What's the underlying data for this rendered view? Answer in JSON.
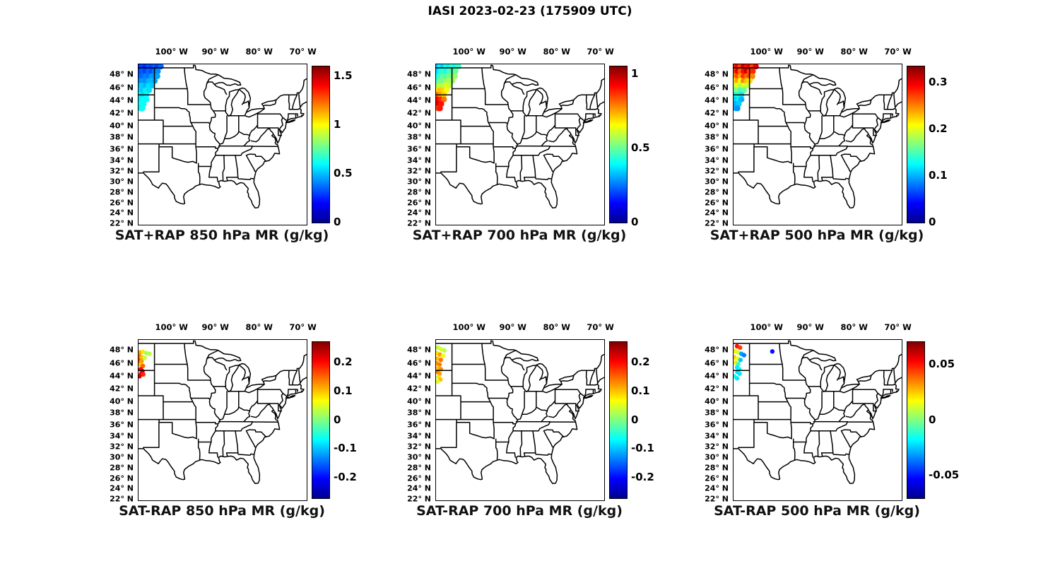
{
  "figure": {
    "title": "IASI 2023-02-23 (175909 UTC)"
  },
  "axes": {
    "lon_ticks": [
      {
        "label": "100° W",
        "lon": -100
      },
      {
        "label": "90° W",
        "lon": -90
      },
      {
        "label": "80° W",
        "lon": -80
      },
      {
        "label": "70° W",
        "lon": -70
      }
    ],
    "lat_ticks": [
      {
        "label": "48° N",
        "lat": 48
      },
      {
        "label": "46° N",
        "lat": 46
      },
      {
        "label": "44° N",
        "lat": 44
      },
      {
        "label": "42° N",
        "lat": 42
      },
      {
        "label": "40° N",
        "lat": 40
      },
      {
        "label": "38° N",
        "lat": 38
      },
      {
        "label": "36° N",
        "lat": 36
      },
      {
        "label": "34° N",
        "lat": 34
      },
      {
        "label": "32° N",
        "lat": 32
      },
      {
        "label": "30° N",
        "lat": 30
      },
      {
        "label": "28° N",
        "lat": 28
      },
      {
        "label": "26° N",
        "lat": 26
      },
      {
        "label": "24° N",
        "lat": 24
      },
      {
        "label": "22° N",
        "lat": 22
      }
    ]
  },
  "chart_data": {
    "type": "scatter",
    "colormap": "jet",
    "projection": {
      "lon_range": [
        -107.7,
        -69.3
      ],
      "lat_range": [
        21.8,
        49.5
      ]
    },
    "panels": [
      {
        "title": "SAT+RAP 850 hPa MR (g/kg)",
        "colorbar": {
          "min": 0,
          "max": 1.6,
          "ticks": [
            {
              "v": 0,
              "label": "0"
            },
            {
              "v": 0.5,
              "label": "0.5"
            },
            {
              "v": 1,
              "label": "1"
            },
            {
              "v": 1.5,
              "label": "1.5"
            }
          ]
        },
        "points": [
          [
            -107.5,
            49.2,
            0.28
          ],
          [
            -106.8,
            49.2,
            0.3
          ],
          [
            -106.1,
            49.2,
            0.26
          ],
          [
            -105.4,
            49.2,
            0.32
          ],
          [
            -104.7,
            49.2,
            0.3
          ],
          [
            -104.0,
            49.2,
            0.34
          ],
          [
            -103.3,
            49.2,
            0.3
          ],
          [
            -102.6,
            49.2,
            0.36
          ],
          [
            -107.5,
            48.5,
            0.3
          ],
          [
            -106.8,
            48.5,
            0.34
          ],
          [
            -106.1,
            48.5,
            0.3
          ],
          [
            -105.4,
            48.5,
            0.36
          ],
          [
            -104.7,
            48.5,
            0.32
          ],
          [
            -104.0,
            48.5,
            0.38
          ],
          [
            -103.3,
            48.5,
            0.42
          ],
          [
            -107.5,
            47.8,
            0.34
          ],
          [
            -106.8,
            47.8,
            0.36
          ],
          [
            -106.1,
            47.8,
            0.4
          ],
          [
            -105.4,
            47.8,
            0.38
          ],
          [
            -104.7,
            47.8,
            0.44
          ],
          [
            -104.0,
            47.8,
            0.42
          ],
          [
            -103.4,
            47.8,
            0.46
          ],
          [
            -107.5,
            47.1,
            0.4
          ],
          [
            -106.8,
            47.1,
            0.44
          ],
          [
            -106.1,
            47.1,
            0.42
          ],
          [
            -105.4,
            47.1,
            0.48
          ],
          [
            -104.7,
            47.1,
            0.5
          ],
          [
            -104.0,
            47.1,
            0.46
          ],
          [
            -107.5,
            46.4,
            0.5
          ],
          [
            -106.8,
            46.4,
            0.52
          ],
          [
            -106.1,
            46.4,
            0.48
          ],
          [
            -105.4,
            46.4,
            0.55
          ],
          [
            -104.6,
            46.4,
            0.52
          ],
          [
            -107.5,
            45.7,
            0.55
          ],
          [
            -106.8,
            45.7,
            0.52
          ],
          [
            -106.1,
            45.7,
            0.58
          ],
          [
            -105.3,
            45.7,
            0.55
          ],
          [
            -107.5,
            45.0,
            0.6
          ],
          [
            -106.7,
            45.0,
            0.55
          ],
          [
            -105.9,
            45.0,
            0.6
          ],
          [
            -107.4,
            44.3,
            0.58
          ],
          [
            -106.6,
            44.3,
            0.62
          ],
          [
            -105.9,
            44.3,
            0.6
          ],
          [
            -107.3,
            43.6,
            0.62
          ],
          [
            -106.5,
            43.6,
            0.6
          ],
          [
            -107.2,
            42.9,
            0.58
          ],
          [
            -106.8,
            42.9,
            0.62
          ]
        ]
      },
      {
        "title": "SAT+RAP 700 hPa MR (g/kg)",
        "colorbar": {
          "min": 0,
          "max": 1.05,
          "ticks": [
            {
              "v": 0,
              "label": "0"
            },
            {
              "v": 0.5,
              "label": "0.5"
            },
            {
              "v": 1,
              "label": "1"
            }
          ]
        },
        "points": [
          [
            -107.5,
            49.2,
            0.32
          ],
          [
            -106.8,
            49.2,
            0.38
          ],
          [
            -106.1,
            49.2,
            0.35
          ],
          [
            -105.4,
            49.2,
            0.42
          ],
          [
            -104.7,
            49.2,
            0.38
          ],
          [
            -104.0,
            49.2,
            0.45
          ],
          [
            -103.3,
            49.2,
            0.4
          ],
          [
            -102.6,
            49.2,
            0.45
          ],
          [
            -107.5,
            48.5,
            0.35
          ],
          [
            -106.8,
            48.5,
            0.4
          ],
          [
            -106.1,
            48.5,
            0.45
          ],
          [
            -105.4,
            48.5,
            0.4
          ],
          [
            -104.7,
            48.5,
            0.48
          ],
          [
            -104.0,
            48.5,
            0.45
          ],
          [
            -103.3,
            48.5,
            0.5
          ],
          [
            -107.5,
            47.8,
            0.4
          ],
          [
            -106.8,
            47.8,
            0.45
          ],
          [
            -106.1,
            47.8,
            0.5
          ],
          [
            -105.4,
            47.8,
            0.48
          ],
          [
            -104.7,
            47.8,
            0.52
          ],
          [
            -104.0,
            47.8,
            0.5
          ],
          [
            -103.4,
            47.8,
            0.55
          ],
          [
            -107.5,
            47.1,
            0.45
          ],
          [
            -106.8,
            47.1,
            0.52
          ],
          [
            -106.1,
            47.1,
            0.5
          ],
          [
            -105.4,
            47.1,
            0.55
          ],
          [
            -104.7,
            47.1,
            0.58
          ],
          [
            -104.0,
            47.1,
            0.55
          ],
          [
            -107.5,
            46.4,
            0.55
          ],
          [
            -106.8,
            46.4,
            0.6
          ],
          [
            -106.1,
            46.4,
            0.58
          ],
          [
            -105.4,
            46.4,
            0.62
          ],
          [
            -104.6,
            46.4,
            0.6
          ],
          [
            -107.5,
            45.7,
            0.68
          ],
          [
            -106.8,
            45.7,
            0.72
          ],
          [
            -106.1,
            45.7,
            0.7
          ],
          [
            -105.3,
            45.7,
            0.65
          ],
          [
            -107.5,
            45.0,
            0.8
          ],
          [
            -106.7,
            45.0,
            0.75
          ],
          [
            -105.9,
            45.0,
            0.7
          ],
          [
            -107.4,
            44.3,
            0.92
          ],
          [
            -106.6,
            44.3,
            0.88
          ],
          [
            -105.9,
            44.3,
            0.8
          ],
          [
            -107.3,
            43.6,
            0.95
          ],
          [
            -106.5,
            43.6,
            0.9
          ],
          [
            -107.2,
            42.9,
            0.85
          ],
          [
            -106.8,
            42.9,
            0.9
          ]
        ]
      },
      {
        "title": "SAT+RAP 500 hPa MR (g/kg)",
        "colorbar": {
          "min": 0,
          "max": 0.335,
          "ticks": [
            {
              "v": 0,
              "label": "0"
            },
            {
              "v": 0.1,
              "label": "0.1"
            },
            {
              "v": 0.2,
              "label": "0.2"
            },
            {
              "v": 0.3,
              "label": "0.3"
            }
          ]
        },
        "points": [
          [
            -107.5,
            49.2,
            0.28
          ],
          [
            -106.8,
            49.2,
            0.3
          ],
          [
            -106.1,
            49.2,
            0.27
          ],
          [
            -105.4,
            49.2,
            0.31
          ],
          [
            -104.7,
            49.2,
            0.29
          ],
          [
            -104.0,
            49.2,
            0.3
          ],
          [
            -103.3,
            49.2,
            0.27
          ],
          [
            -102.6,
            49.2,
            0.3
          ],
          [
            -107.5,
            48.5,
            0.27
          ],
          [
            -106.8,
            48.5,
            0.3
          ],
          [
            -106.1,
            48.5,
            0.26
          ],
          [
            -105.4,
            48.5,
            0.29
          ],
          [
            -104.7,
            48.5,
            0.31
          ],
          [
            -104.0,
            48.5,
            0.27
          ],
          [
            -103.3,
            48.5,
            0.28
          ],
          [
            -107.5,
            47.8,
            0.25
          ],
          [
            -106.8,
            47.8,
            0.27
          ],
          [
            -106.1,
            47.8,
            0.24
          ],
          [
            -105.4,
            47.8,
            0.28
          ],
          [
            -104.7,
            47.8,
            0.26
          ],
          [
            -104.0,
            47.8,
            0.27
          ],
          [
            -103.4,
            47.8,
            0.25
          ],
          [
            -107.5,
            47.1,
            0.22
          ],
          [
            -106.8,
            47.1,
            0.24
          ],
          [
            -106.1,
            47.1,
            0.21
          ],
          [
            -105.4,
            47.1,
            0.25
          ],
          [
            -104.7,
            47.1,
            0.23
          ],
          [
            -104.0,
            47.1,
            0.22
          ],
          [
            -107.5,
            46.4,
            0.19
          ],
          [
            -106.8,
            46.4,
            0.21
          ],
          [
            -106.1,
            46.4,
            0.18
          ],
          [
            -105.4,
            46.4,
            0.2
          ],
          [
            -104.6,
            46.4,
            0.19
          ],
          [
            -107.5,
            45.7,
            0.16
          ],
          [
            -106.8,
            45.7,
            0.17
          ],
          [
            -106.1,
            45.7,
            0.15
          ],
          [
            -105.3,
            45.7,
            0.16
          ],
          [
            -107.5,
            45.0,
            0.13
          ],
          [
            -106.7,
            45.0,
            0.14
          ],
          [
            -105.9,
            45.0,
            0.12
          ],
          [
            -107.4,
            44.3,
            0.11
          ],
          [
            -106.6,
            44.3,
            0.12
          ],
          [
            -105.9,
            44.3,
            0.1
          ],
          [
            -107.3,
            43.6,
            0.1
          ],
          [
            -106.5,
            43.6,
            0.11
          ],
          [
            -107.2,
            42.9,
            0.1
          ],
          [
            -106.8,
            42.9,
            0.09
          ]
        ]
      },
      {
        "title": "SAT-RAP 850 hPa MR (g/kg)",
        "colorbar": {
          "min": -0.27,
          "max": 0.27,
          "ticks": [
            {
              "v": -0.2,
              "label": "-0.2"
            },
            {
              "v": -0.1,
              "label": "-0.1"
            },
            {
              "v": 0,
              "label": "0"
            },
            {
              "v": 0.1,
              "label": "0.1"
            },
            {
              "v": 0.2,
              "label": "0.2"
            }
          ]
        },
        "points": [
          [
            -107.4,
            47.7,
            0.12
          ],
          [
            -106.7,
            47.8,
            0.08
          ],
          [
            -105.9,
            47.6,
            0.02
          ],
          [
            -105.2,
            47.5,
            0.03
          ],
          [
            -107.5,
            47.1,
            0.15
          ],
          [
            -106.9,
            47.0,
            0.1
          ],
          [
            -106.3,
            46.9,
            0.04
          ],
          [
            -107.6,
            46.5,
            0.17
          ],
          [
            -107.0,
            46.4,
            0.12
          ],
          [
            -107.3,
            45.9,
            0.1
          ],
          [
            -106.7,
            45.7,
            0.15
          ],
          [
            -107.2,
            45.2,
            0.2
          ],
          [
            -106.8,
            44.9,
            0.23
          ],
          [
            -107.1,
            44.5,
            0.21
          ],
          [
            -106.6,
            44.4,
            0.18
          ],
          [
            -107.45,
            44.1,
            0.22
          ]
        ]
      },
      {
        "title": "SAT-RAP 700 hPa MR (g/kg)",
        "colorbar": {
          "min": -0.27,
          "max": 0.27,
          "ticks": [
            {
              "v": -0.2,
              "label": "-0.2"
            },
            {
              "v": -0.1,
              "label": "-0.1"
            },
            {
              "v": 0,
              "label": "0"
            },
            {
              "v": 0.1,
              "label": "0.1"
            },
            {
              "v": 0.2,
              "label": "0.2"
            }
          ]
        },
        "points": [
          [
            -107.3,
            48.4,
            0.03
          ],
          [
            -106.6,
            48.2,
            0.05
          ],
          [
            -105.8,
            48.0,
            0.03
          ],
          [
            -107.5,
            47.6,
            0.08
          ],
          [
            -106.8,
            47.4,
            0.12
          ],
          [
            -106.1,
            47.2,
            0.06
          ],
          [
            -107.4,
            46.8,
            0.1
          ],
          [
            -106.6,
            46.6,
            0.14
          ],
          [
            -107.5,
            46.1,
            0.12
          ],
          [
            -106.9,
            45.9,
            0.14
          ],
          [
            -107.2,
            45.4,
            0.1
          ],
          [
            -106.6,
            45.2,
            0.13
          ],
          [
            -107.4,
            44.8,
            0.14
          ],
          [
            -106.9,
            44.5,
            0.12
          ],
          [
            -107.1,
            44.0,
            0.08
          ],
          [
            -106.7,
            43.6,
            0.1
          ],
          [
            -107.3,
            43.3,
            0.05
          ]
        ]
      },
      {
        "title": "SAT-RAP 500 hPa MR (g/kg)",
        "colorbar": {
          "min": -0.07,
          "max": 0.07,
          "ticks": [
            {
              "v": -0.05,
              "label": "-0.05"
            },
            {
              "v": 0,
              "label": "0"
            },
            {
              "v": 0.05,
              "label": "0.05"
            }
          ]
        },
        "points": [
          [
            -106.9,
            48.6,
            0.05
          ],
          [
            -106.2,
            48.4,
            0.045
          ],
          [
            -98.85,
            47.85,
            -0.05
          ],
          [
            -107.4,
            47.9,
            0.02
          ],
          [
            -106.6,
            47.7,
            0.01
          ],
          [
            -105.9,
            47.5,
            -0.03
          ],
          [
            -105.3,
            47.3,
            -0.035
          ],
          [
            -107.5,
            47.0,
            0.025
          ],
          [
            -106.8,
            46.8,
            0.015
          ],
          [
            -106.1,
            46.6,
            -0.025
          ],
          [
            -107.3,
            46.2,
            0.02
          ],
          [
            -106.6,
            46.0,
            -0.01
          ],
          [
            -106.9,
            45.5,
            -0.02
          ],
          [
            -106.4,
            45.2,
            -0.018
          ],
          [
            -106.8,
            44.8,
            -0.022
          ],
          [
            -106.3,
            44.5,
            -0.02
          ],
          [
            -107.5,
            44.1,
            -0.015
          ],
          [
            -106.9,
            43.8,
            -0.02
          ]
        ]
      }
    ]
  }
}
